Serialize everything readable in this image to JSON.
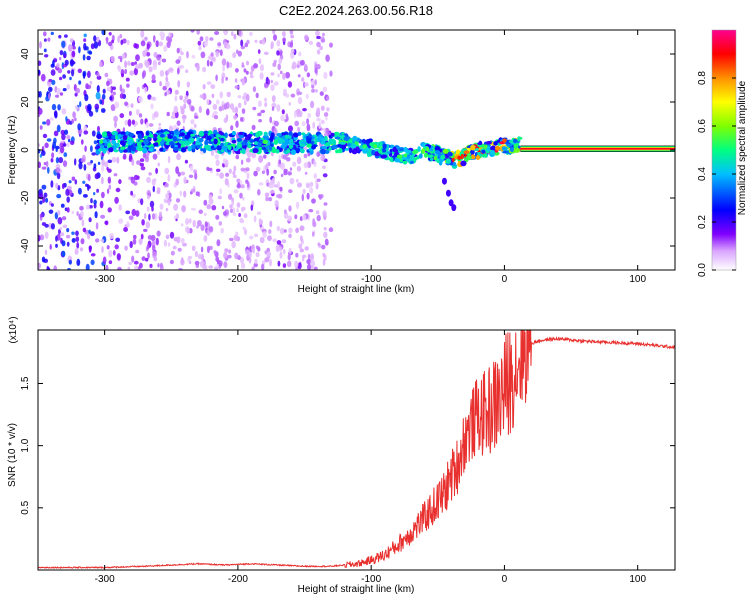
{
  "title": "C2E2.2024.263.00.56.R18",
  "colors": {
    "snr_line": "#e8302e",
    "axis": "#000000",
    "background": "#ffffff"
  },
  "chart_data": [
    {
      "type": "heatmap",
      "title": "C2E2.2024.263.00.56.R18",
      "xlabel": "Height of straight line (km)",
      "ylabel": "Frequency (Hz)",
      "xlim": [
        -350,
        128
      ],
      "ylim": [
        -50,
        50
      ],
      "x_ticks": [
        -300,
        -200,
        -100,
        0,
        100
      ],
      "y_ticks": [
        -40,
        -20,
        0,
        20,
        40
      ],
      "x_tick_labels": [
        "-300",
        "-200",
        "-100",
        "0",
        "100"
      ],
      "y_tick_labels": [
        "-40",
        "-20",
        "0",
        "20",
        "40"
      ],
      "grid": false,
      "colorbar": {
        "label": "Normalized spectral amplitude",
        "range": [
          0.0,
          1.0
        ],
        "ticks": [
          0.0,
          0.2,
          0.4,
          0.6,
          0.8
        ],
        "tick_labels": [
          "0.0",
          "0.2",
          "0.4",
          "0.6",
          "0.8"
        ],
        "colormap": [
          "#ffffff",
          "#ff00ff",
          "#8000ff",
          "#0000ff",
          "#00ffff",
          "#00ff00",
          "#ffff00",
          "#ff8000",
          "#ff0000",
          "#ff0080"
        ]
      },
      "features": {
        "noise_region_km": [
          -350,
          -130
        ],
        "central_band_km": [
          -305,
          12
        ],
        "central_band_center_hz": [
          [
            -305,
            3
          ],
          [
            -250,
            4
          ],
          [
            -200,
            3
          ],
          [
            -150,
            3
          ],
          [
            -120,
            3
          ],
          [
            -100,
            1
          ],
          [
            -85,
            -1
          ],
          [
            -70,
            -3
          ],
          [
            -60,
            0
          ],
          [
            -45,
            -3
          ],
          [
            -35,
            -4
          ],
          [
            -25,
            -1
          ],
          [
            -10,
            1
          ],
          [
            0,
            2
          ],
          [
            12,
            2
          ]
        ],
        "tone_line_km": [
          12,
          128
        ],
        "tone_line_hz": 0.5,
        "spur_points": [
          [
            -45,
            -13
          ],
          [
            -42,
            -18
          ],
          [
            -40,
            -22
          ],
          [
            -38,
            -24
          ]
        ]
      }
    },
    {
      "type": "line",
      "xlabel": "Height of straight line (km)",
      "ylabel": "SNR (10 * v/v)",
      "y_multiplier": "(x10⁴)",
      "xlim": [
        -350,
        128
      ],
      "ylim": [
        0,
        1.93
      ],
      "x_ticks": [
        -300,
        -200,
        -100,
        0,
        100
      ],
      "y_ticks": [
        0.5,
        1.0,
        1.5
      ],
      "x_tick_labels": [
        "-300",
        "-200",
        "-100",
        "0",
        "100"
      ],
      "y_tick_labels": [
        "0.5",
        "1.0",
        "1.5"
      ],
      "grid": false,
      "series": [
        {
          "color": "#e8302e",
          "x": [
            -350,
            -300,
            -270,
            -250,
            -230,
            -210,
            -190,
            -170,
            -150,
            -130,
            -110,
            -100,
            -90,
            -80,
            -70,
            -60,
            -50,
            -45,
            -40,
            -35,
            -30,
            -25,
            -20,
            -15,
            -10,
            -5,
            0,
            5,
            10,
            15,
            20,
            25,
            30,
            35,
            40,
            50,
            60,
            80,
            100,
            128
          ],
          "values": [
            0.02,
            0.02,
            0.03,
            0.04,
            0.05,
            0.04,
            0.05,
            0.04,
            0.03,
            0.03,
            0.05,
            0.08,
            0.12,
            0.2,
            0.3,
            0.42,
            0.55,
            0.62,
            0.75,
            0.85,
            1.05,
            1.15,
            1.25,
            1.25,
            1.3,
            1.35,
            1.45,
            1.55,
            1.68,
            1.76,
            1.82,
            1.84,
            1.85,
            1.855,
            1.86,
            1.85,
            1.84,
            1.83,
            1.82,
            1.79
          ]
        }
      ]
    }
  ]
}
